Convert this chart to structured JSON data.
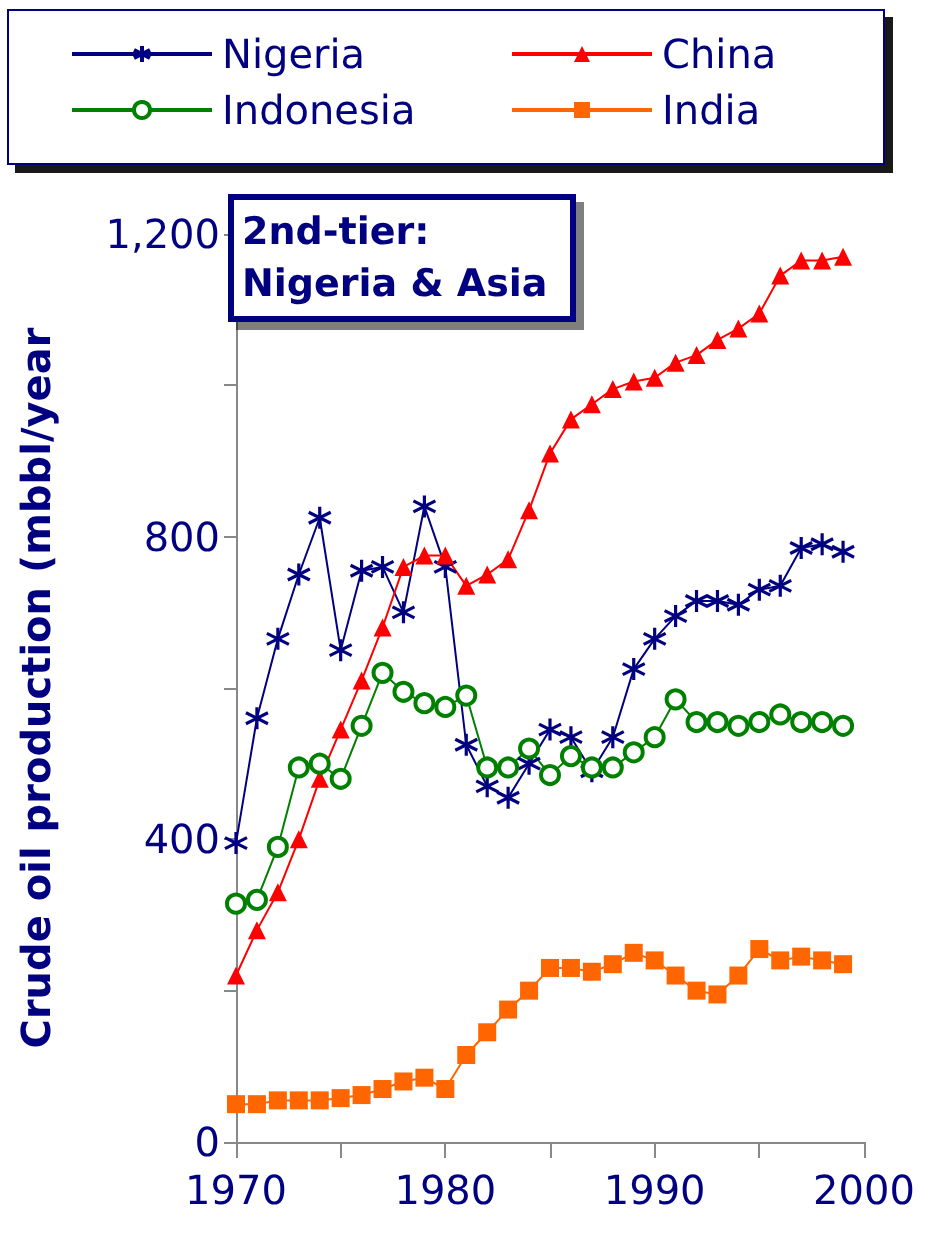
{
  "chart_data": {
    "type": "line",
    "title": "2nd-tier: Nigeria & Asia",
    "ylabel": "Crude oil production (mbbl/year",
    "x": [
      1970,
      1971,
      1972,
      1973,
      1974,
      1975,
      1976,
      1977,
      1978,
      1979,
      1980,
      1981,
      1982,
      1983,
      1984,
      1985,
      1986,
      1987,
      1988,
      1989,
      1990,
      1991,
      1992,
      1993,
      1994,
      1995,
      1996,
      1997,
      1998,
      1999
    ],
    "series": [
      {
        "name": "Nigeria",
        "color": "#000080",
        "marker": "cross",
        "values": [
          395,
          560,
          665,
          750,
          825,
          650,
          755,
          760,
          700,
          840,
          760,
          525,
          470,
          455,
          500,
          545,
          535,
          490,
          535,
          625,
          665,
          695,
          715,
          715,
          710,
          730,
          735,
          785,
          790,
          780
        ]
      },
      {
        "name": "China",
        "color": "#ff0000",
        "marker": "triangle",
        "values": [
          220,
          280,
          330,
          400,
          480,
          545,
          610,
          680,
          760,
          775,
          775,
          735,
          750,
          770,
          835,
          910,
          955,
          975,
          995,
          1005,
          1010,
          1030,
          1040,
          1060,
          1075,
          1095,
          1145,
          1165,
          1165,
          1170
        ]
      },
      {
        "name": "Indonesia",
        "color": "#008000",
        "marker": "circle",
        "values": [
          315,
          320,
          390,
          495,
          500,
          480,
          550,
          620,
          595,
          580,
          575,
          590,
          495,
          495,
          520,
          485,
          510,
          495,
          495,
          515,
          535,
          585,
          555,
          555,
          550,
          555,
          565,
          555,
          555,
          550
        ]
      },
      {
        "name": "India",
        "color": "#ff6600",
        "marker": "square",
        "values": [
          50,
          50,
          55,
          55,
          55,
          58,
          62,
          70,
          80,
          85,
          70,
          115,
          145,
          175,
          200,
          230,
          230,
          225,
          235,
          250,
          240,
          220,
          200,
          195,
          220,
          255,
          240,
          245,
          240,
          235
        ]
      }
    ],
    "xlim": [
      1970,
      2000
    ],
    "xticks": [
      1970,
      1980,
      1990,
      2000
    ],
    "ylim": [
      0,
      1200
    ],
    "yticks": [
      0,
      400,
      800,
      {
        "value": 1200,
        "label": "1,200"
      }
    ],
    "legend": "top",
    "grid": false
  }
}
